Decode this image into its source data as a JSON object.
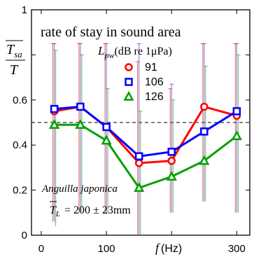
{
  "chart_data": {
    "type": "line",
    "title": "rate of stay in sound area",
    "ylabel": {
      "bar": "T",
      "sub": "sa",
      "denom": "T"
    },
    "xlabel": {
      "var": "f",
      "unit": "(Hz)"
    },
    "x_ticks": [
      0,
      100,
      200,
      300
    ],
    "x_tick_labels": [
      "0",
      "100",
      "",
      "300"
    ],
    "y_ticks": [
      0,
      0.2,
      0.4,
      0.6,
      0.8,
      1.0
    ],
    "y_tick_labels": [
      "0",
      "0.2",
      "0.4",
      "0.6",
      "",
      "1"
    ],
    "xlim": [
      -15,
      320
    ],
    "ylim": [
      0,
      1
    ],
    "reference_line": 0.5,
    "legend_title": {
      "var": "L",
      "sub": "pw",
      "rest": "(dB re 1μPa)"
    },
    "legend_position": "top-right",
    "x": [
      20,
      60,
      100,
      150,
      200,
      250,
      300
    ],
    "series": [
      {
        "name": "91",
        "marker": "circle",
        "color": "#ff0000",
        "values": [
          0.55,
          0.57,
          0.48,
          0.32,
          0.33,
          0.57,
          0.53
        ],
        "err_hi": [
          0.85,
          0.85,
          0.85,
          0.77,
          0.65,
          0.85,
          0.85
        ],
        "err_lo": [
          0.06,
          0.1,
          0.1,
          0.0,
          0.1,
          0.15,
          0.1
        ]
      },
      {
        "name": "106",
        "marker": "square",
        "color": "#0000ff",
        "values": [
          0.56,
          0.57,
          0.48,
          0.35,
          0.37,
          0.46,
          0.55
        ],
        "err_hi": [
          0.85,
          0.85,
          0.85,
          0.85,
          0.67,
          0.85,
          0.85
        ],
        "err_lo": [
          0.06,
          0.1,
          0.1,
          0.0,
          0.1,
          0.15,
          0.1
        ]
      },
      {
        "name": "126",
        "marker": "triangle",
        "color": "#00a000",
        "values": [
          0.49,
          0.49,
          0.42,
          0.21,
          0.26,
          0.33,
          0.44
        ],
        "err_hi": [
          0.82,
          0.8,
          0.65,
          0.55,
          0.6,
          0.75,
          0.8
        ],
        "err_lo": [
          0.04,
          0.1,
          0.1,
          0.0,
          0.1,
          0.15,
          0.1
        ]
      }
    ],
    "annotations": {
      "species": "Anguilla japonica",
      "length_var": "T",
      "length_sub": "L",
      "length_value": "= 200 ± 23mm"
    }
  }
}
